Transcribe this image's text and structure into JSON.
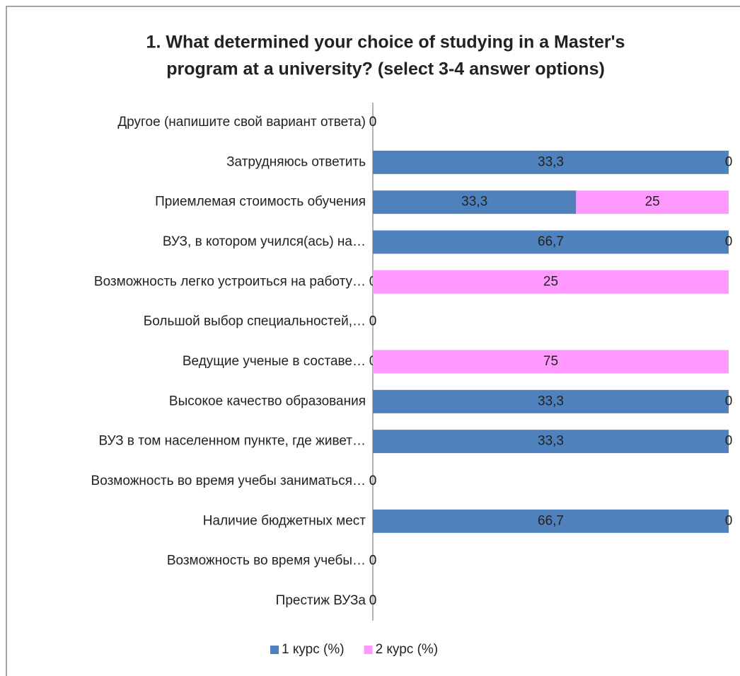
{
  "chart_data": {
    "type": "bar",
    "orientation": "horizontal",
    "stack": "percent",
    "title": [
      "1. What determined your choice of studying in a Master's",
      "program at a university? (select 3-4 answer options)"
    ],
    "categories": [
      "Другое (напишите свой вариант ответа)",
      "Затрудняюсь ответить",
      "Приемлемая стоимость обучения",
      "ВУЗ, в котором учился(ась) на…",
      "Возможность легко устроиться на работу…",
      "Большой выбор специальностей,…",
      "Ведущие ученые в составе…",
      "Высокое качество образования",
      "ВУЗ в том населенном пункте, где живет…",
      "Возможность во время учебы заниматься…",
      "Наличие бюджетных мест",
      "Возможность во время учебы…",
      "Престиж ВУЗа"
    ],
    "series": [
      {
        "name": "1 курс (%)",
        "color": "#4f81bd",
        "values": [
          0,
          33.3,
          33.3,
          66.7,
          0,
          0,
          0,
          33.3,
          33.3,
          0,
          66.7,
          0,
          0
        ],
        "value_labels": [
          "0",
          "33,3",
          "33,3",
          "66,7",
          "0",
          "0",
          "0",
          "33,3",
          "33,3",
          "0",
          "66,7",
          "0",
          "0"
        ]
      },
      {
        "name": "2 курс (%)",
        "color": "#ff99ff",
        "values": [
          0,
          0,
          25,
          0,
          25,
          0,
          75,
          0,
          0,
          0,
          0,
          0,
          0
        ],
        "value_labels": [
          "0",
          "0",
          "25",
          "0",
          "25",
          "0",
          "75",
          "0",
          "0",
          "0",
          "0",
          "0",
          "0"
        ]
      }
    ],
    "legend": "bottom"
  }
}
